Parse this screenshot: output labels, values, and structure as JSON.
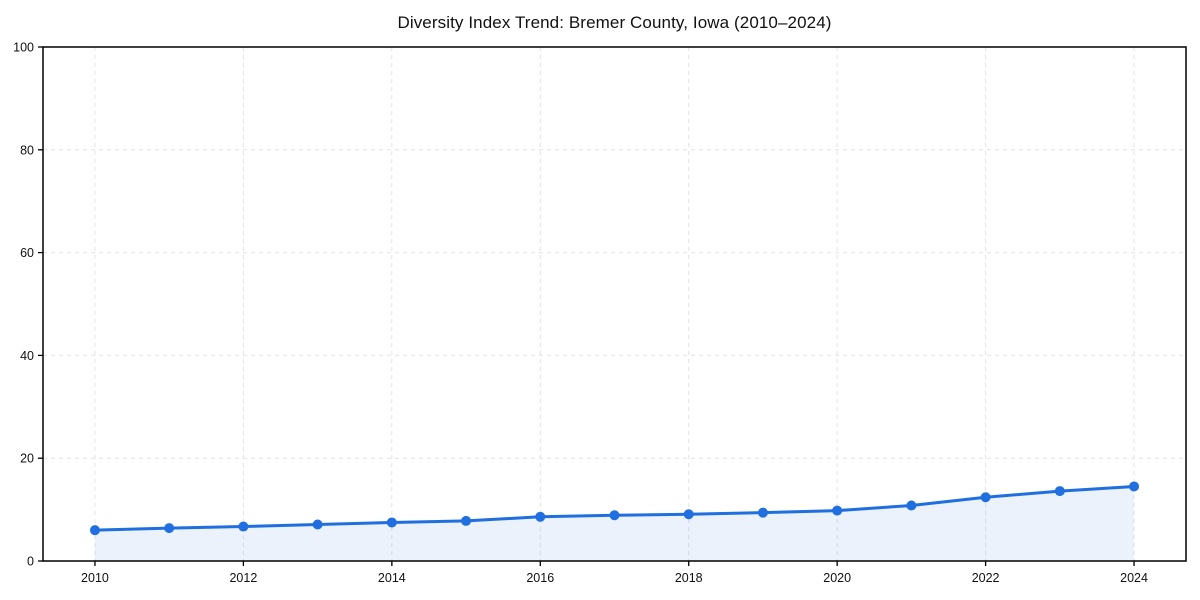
{
  "title": "Diversity Index Trend: Bremer County, Iowa (2010–2024)",
  "chart_data": {
    "type": "line",
    "title": "Diversity Index Trend: Bremer County, Iowa (2010–2024)",
    "x": [
      2010,
      2011,
      2012,
      2013,
      2014,
      2015,
      2016,
      2017,
      2018,
      2019,
      2020,
      2021,
      2022,
      2023,
      2024
    ],
    "values": [
      6.0,
      6.4,
      6.7,
      7.1,
      7.5,
      7.8,
      8.6,
      8.9,
      9.1,
      9.4,
      9.8,
      10.8,
      12.4,
      13.6,
      14.5
    ],
    "series_label": "Diversity Index",
    "xlabel": "",
    "ylabel": "",
    "xlim": [
      2009.3,
      2024.7
    ],
    "ylim": [
      0,
      100
    ],
    "xticks": [
      2010,
      2012,
      2014,
      2016,
      2018,
      2020,
      2022,
      2024
    ],
    "yticks": [
      0,
      20,
      40,
      60,
      80,
      100
    ],
    "grid": "dashed",
    "legend": "none",
    "marker": "circle",
    "area_fill": true,
    "colors": {
      "line": "#1f6fe0",
      "marker": "#1f6fe0",
      "fill": "rgba(31,111,224,0.09)",
      "grid": "#e2e2e2",
      "axis": "#000000",
      "tick_text": "#111111",
      "background": "#ffffff"
    }
  }
}
